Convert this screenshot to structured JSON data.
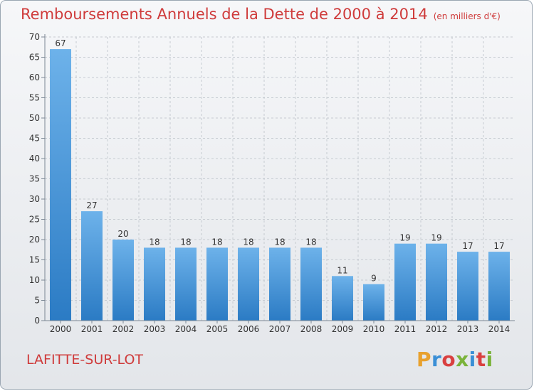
{
  "title": "Remboursements Annuels de la Dette de 2000 à 2014",
  "subtitle": "(en milliers d'€)",
  "commune": "LAFITTE-SUR-LOT",
  "logo": {
    "text": "Proxiti",
    "letter_colors": [
      "#e8a12e",
      "#3a8fd6",
      "#d94040",
      "#7ab33a",
      "#3a8fd6",
      "#d94040",
      "#7ab33a"
    ]
  },
  "colors": {
    "title": "#cf3b3b",
    "bar_light": "#6db2ea",
    "bar_dark": "#2b7bc4",
    "axis": "#7b8794",
    "grid": "#c6cbd1"
  },
  "chart_data": {
    "type": "bar",
    "categories": [
      "2000",
      "2001",
      "2002",
      "2003",
      "2004",
      "2005",
      "2006",
      "2007",
      "2008",
      "2009",
      "2010",
      "2011",
      "2012",
      "2013",
      "2014"
    ],
    "values": [
      67,
      27,
      20,
      18,
      18,
      18,
      18,
      18,
      18,
      11,
      9,
      19,
      19,
      17,
      17
    ],
    "ylim": [
      0,
      70
    ],
    "yticks": [
      0,
      5,
      10,
      15,
      20,
      25,
      30,
      35,
      40,
      45,
      50,
      55,
      60,
      65,
      70
    ],
    "grid": true,
    "data_labels": true
  }
}
